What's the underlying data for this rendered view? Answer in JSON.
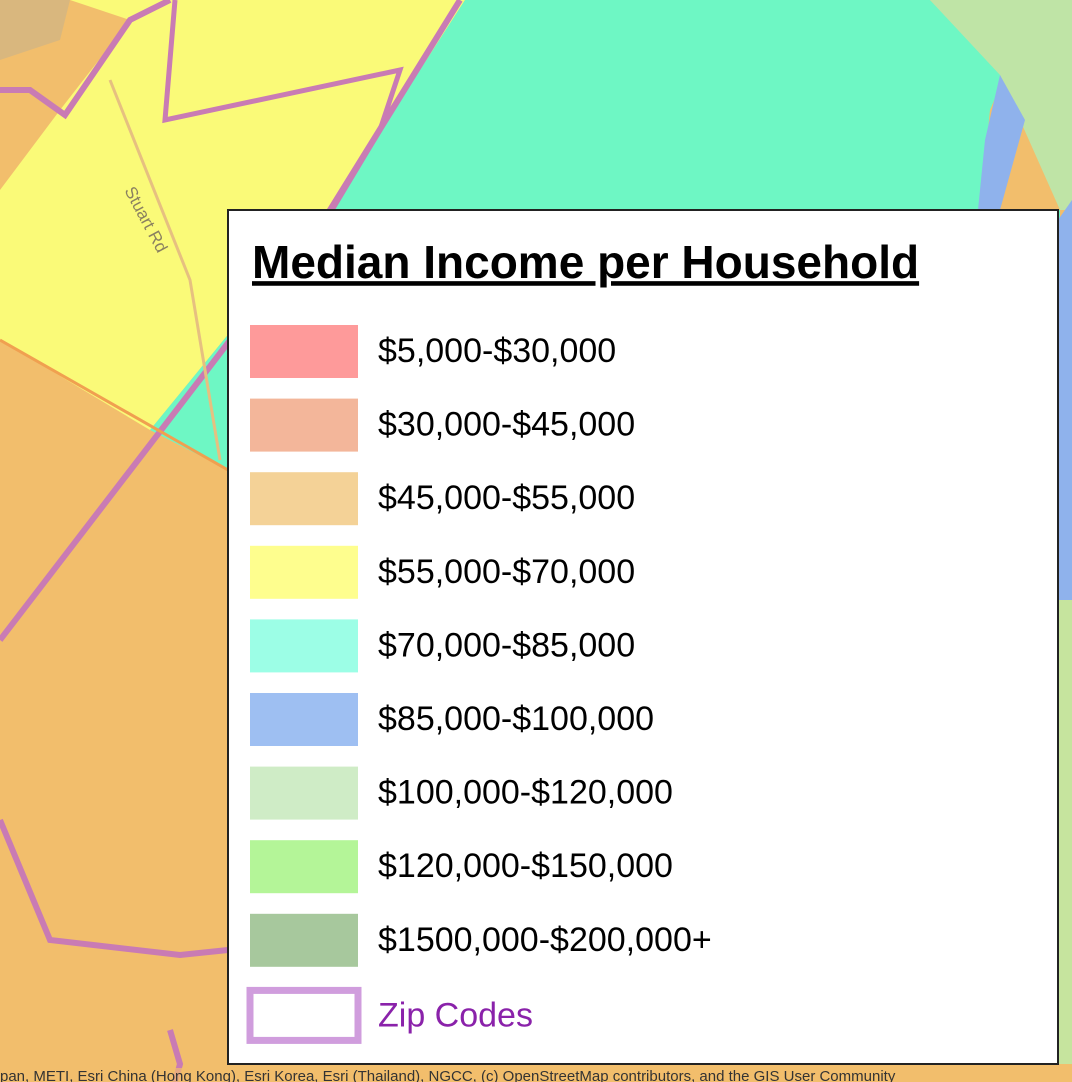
{
  "map": {
    "road_label": "Stuart Rd",
    "attribution": "pan, METI, Esri China (Hong Kong), Esri Korea, Esri (Thailand), NGCC, (c) OpenStreetMap contributors, and the GIS User Community"
  },
  "legend": {
    "title": "Median Income per Household",
    "items": [
      {
        "label": "$5,000-$30,000",
        "color": "#fe9a9a"
      },
      {
        "label": "$30,000-$45,000",
        "color": "#f3b69a"
      },
      {
        "label": "$45,000-$55,000",
        "color": "#f4d297"
      },
      {
        "label": "$55,000-$70,000",
        "color": "#fefe8e"
      },
      {
        "label": "$70,000-$85,000",
        "color": "#9cfee6"
      },
      {
        "label": "$85,000-$100,000",
        "color": "#9ebff2"
      },
      {
        "label": "$100,000-$120,000",
        "color": "#cfecc6"
      },
      {
        "label": "$120,000-$150,000",
        "color": "#b4f598"
      },
      {
        "label": "$1500,000-$200,000+",
        "color": "#a7c89d"
      }
    ],
    "zip_codes": {
      "label": "Zip Codes",
      "color": "#d09ddd",
      "text_color": "#8a22aa"
    }
  }
}
